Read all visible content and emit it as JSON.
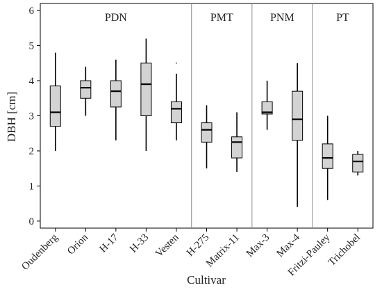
{
  "chart_data": {
    "type": "boxplot",
    "xlabel": "Cultivar",
    "ylabel": "DBH [cm]",
    "ylim": [
      -0.2,
      6.2
    ],
    "yticks": [
      "0",
      "1",
      "2",
      "3",
      "4",
      "5",
      "6"
    ],
    "grid": false,
    "groups": [
      {
        "name": "PDN",
        "categories": [
          "Oudenberg",
          "Orion",
          "H-17",
          "H-33",
          "Vesten"
        ]
      },
      {
        "name": "PMT",
        "categories": [
          "H-275",
          "Matrix-11"
        ]
      },
      {
        "name": "PNM",
        "categories": [
          "Max-3",
          "Max-4"
        ]
      },
      {
        "name": "PT",
        "categories": [
          "Fritzi-Pauley",
          "Trichobel"
        ]
      }
    ],
    "boxes": [
      {
        "cultivar": "Oudenberg",
        "min": 2.0,
        "q1": 2.7,
        "median": 3.1,
        "q3": 3.85,
        "max": 4.8
      },
      {
        "cultivar": "Orion",
        "min": 3.0,
        "q1": 3.5,
        "median": 3.8,
        "q3": 4.0,
        "max": 4.4
      },
      {
        "cultivar": "H-17",
        "min": 2.3,
        "q1": 3.25,
        "median": 3.7,
        "q3": 4.0,
        "max": 4.6
      },
      {
        "cultivar": "H-33",
        "min": 2.0,
        "q1": 3.0,
        "median": 3.9,
        "q3": 4.5,
        "max": 5.2
      },
      {
        "cultivar": "Vesten",
        "min": 2.3,
        "q1": 2.8,
        "median": 3.2,
        "q3": 3.4,
        "max": 4.2,
        "outliers": [
          4.5
        ]
      },
      {
        "cultivar": "H-275",
        "min": 1.5,
        "q1": 2.25,
        "median": 2.6,
        "q3": 2.8,
        "max": 3.3
      },
      {
        "cultivar": "Matrix-11",
        "min": 1.4,
        "q1": 1.8,
        "median": 2.25,
        "q3": 2.4,
        "max": 3.1
      },
      {
        "cultivar": "Max-3",
        "min": 2.6,
        "q1": 3.05,
        "median": 3.1,
        "q3": 3.4,
        "max": 4.0
      },
      {
        "cultivar": "Max-4",
        "min": 0.4,
        "q1": 2.3,
        "median": 2.9,
        "q3": 3.7,
        "max": 4.5
      },
      {
        "cultivar": "Fritzi-Pauley",
        "min": 0.6,
        "q1": 1.5,
        "median": 1.8,
        "q3": 2.2,
        "max": 3.0
      },
      {
        "cultivar": "Trichobel",
        "min": 1.3,
        "q1": 1.4,
        "median": 1.7,
        "q3": 1.9,
        "max": 2.0
      }
    ],
    "box_fill": "#d3d3d3",
    "stroke_color": "#000000",
    "divider_color": "#8c8c8c"
  }
}
